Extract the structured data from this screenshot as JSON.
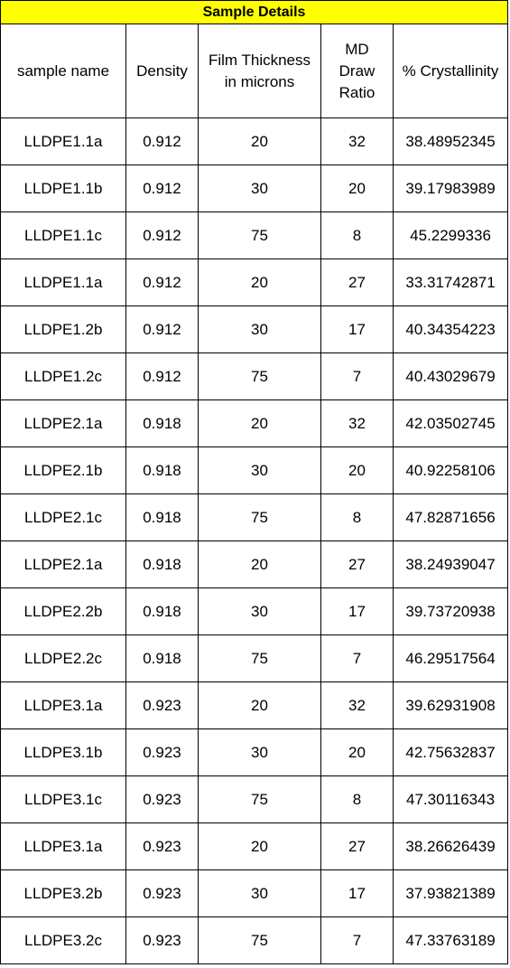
{
  "table": {
    "title": "Sample Details",
    "headers": [
      {
        "key": "sample_name",
        "lines": [
          "sample name"
        ]
      },
      {
        "key": "density",
        "lines": [
          "Density"
        ]
      },
      {
        "key": "film_thickness",
        "lines": [
          "Film Thickness",
          "in microns"
        ]
      },
      {
        "key": "md_draw_ratio",
        "lines": [
          "MD",
          "Draw",
          "Ratio"
        ]
      },
      {
        "key": "crystallinity",
        "lines": [
          "% Crystallinity"
        ]
      }
    ],
    "rows": [
      [
        "LLDPE1.1a",
        "0.912",
        "20",
        "32",
        "38.48952345"
      ],
      [
        "LLDPE1.1b",
        "0.912",
        "30",
        "20",
        "39.17983989"
      ],
      [
        "LLDPE1.1c",
        "0.912",
        "75",
        "8",
        "45.2299336"
      ],
      [
        "LLDPE1.1a",
        "0.912",
        "20",
        "27",
        "33.31742871"
      ],
      [
        "LLDPE1.2b",
        "0.912",
        "30",
        "17",
        "40.34354223"
      ],
      [
        "LLDPE1.2c",
        "0.912",
        "75",
        "7",
        "40.43029679"
      ],
      [
        "LLDPE2.1a",
        "0.918",
        "20",
        "32",
        "42.03502745"
      ],
      [
        "LLDPE2.1b",
        "0.918",
        "30",
        "20",
        "40.92258106"
      ],
      [
        "LLDPE2.1c",
        "0.918",
        "75",
        "8",
        "47.82871656"
      ],
      [
        "LLDPE2.1a",
        "0.918",
        "20",
        "27",
        "38.24939047"
      ],
      [
        "LLDPE2.2b",
        "0.918",
        "30",
        "17",
        "39.73720938"
      ],
      [
        "LLDPE2.2c",
        "0.918",
        "75",
        "7",
        "46.29517564"
      ],
      [
        "LLDPE3.1a",
        "0.923",
        "20",
        "32",
        "39.62931908"
      ],
      [
        "LLDPE3.1b",
        "0.923",
        "30",
        "20",
        "42.75632837"
      ],
      [
        "LLDPE3.1c",
        "0.923",
        "75",
        "8",
        "47.30116343"
      ],
      [
        "LLDPE3.1a",
        "0.923",
        "20",
        "27",
        "38.26626439"
      ],
      [
        "LLDPE3.2b",
        "0.923",
        "30",
        "17",
        "37.93821389"
      ],
      [
        "LLDPE3.2c",
        "0.923",
        "75",
        "7",
        "47.33763189"
      ]
    ],
    "colors": {
      "title_background": "#ffff00",
      "border": "#000000",
      "text": "#000000"
    }
  }
}
